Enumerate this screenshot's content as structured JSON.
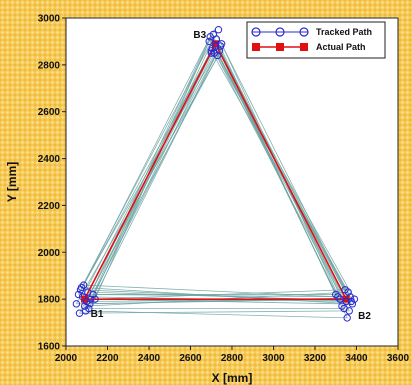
{
  "chart_data": {
    "type": "line",
    "xlabel": "X [mm]",
    "ylabel": "Y [mm]",
    "xlim": [
      2000,
      3600
    ],
    "ylim": [
      1600,
      3000
    ],
    "x_ticks": [
      2000,
      2200,
      2400,
      2600,
      2800,
      3000,
      3200,
      3400,
      3600
    ],
    "y_ticks": [
      1600,
      1800,
      2000,
      2200,
      2400,
      2600,
      2800,
      3000
    ],
    "grid": false,
    "legend_position": "top-right",
    "series": [
      {
        "name": "Tracked Path",
        "color": "#2a2ad0",
        "line_color": "#6fa3a3",
        "marker": "open-circle",
        "x": [
          2080,
          2100,
          2060,
          2120,
          2090,
          2070,
          2110,
          2130,
          2050,
          2085,
          2095,
          2140,
          2065,
          2075,
          2105,
          2115,
          2700,
          2720,
          2690,
          2740,
          2710,
          2730,
          2705,
          2725,
          2750,
          2695,
          2715,
          2735,
          2745,
          2700,
          3320,
          3350,
          3370,
          3330,
          3360,
          3390,
          3340,
          3300,
          3380,
          3355,
          3345,
          3365,
          3310,
          3375
        ],
        "y": [
          1810,
          1790,
          1820,
          1800,
          1770,
          1840,
          1760,
          1820,
          1780,
          1860,
          1750,
          1800,
          1740,
          1850,
          1830,
          1780,
          2850,
          2880,
          2900,
          2860,
          2930,
          2840,
          2870,
          2910,
          2890,
          2920,
          2850,
          2950,
          2880,
          2860,
          1800,
          1790,
          1810,
          1770,
          1830,
          1800,
          1760,
          1820,
          1780,
          1720,
          1840,
          1750,
          1810,
          1790
        ],
        "paths": [
          [
            [
              2080,
              1810
            ],
            [
              3350,
              1790
            ],
            [
              2710,
              2880
            ],
            [
              2080,
              1810
            ]
          ],
          [
            [
              2100,
              1790
            ],
            [
              3330,
              1800
            ],
            [
              2730,
              2900
            ],
            [
              2100,
              1790
            ]
          ],
          [
            [
              2060,
              1820
            ],
            [
              3370,
              1810
            ],
            [
              2700,
              2860
            ],
            [
              2060,
              1820
            ]
          ],
          [
            [
              2120,
              1800
            ],
            [
              3320,
              1780
            ],
            [
              2740,
              2870
            ],
            [
              2120,
              1800
            ]
          ],
          [
            [
              2090,
              1770
            ],
            [
              3360,
              1830
            ],
            [
              2690,
              2910
            ],
            [
              2090,
              1770
            ]
          ],
          [
            [
              2070,
              1840
            ],
            [
              3380,
              1790
            ],
            [
              2720,
              2850
            ],
            [
              2070,
              1840
            ]
          ],
          [
            [
              2110,
              1760
            ],
            [
              3340,
              1760
            ],
            [
              2750,
              2890
            ],
            [
              2110,
              1760
            ]
          ],
          [
            [
              2130,
              1820
            ],
            [
              3300,
              1820
            ],
            [
              2705,
              2930
            ],
            [
              2130,
              1820
            ]
          ],
          [
            [
              2050,
              1780
            ],
            [
              3390,
              1800
            ],
            [
              2735,
              2840
            ],
            [
              2050,
              1780
            ]
          ],
          [
            [
              2085,
              1860
            ],
            [
              3310,
              1810
            ],
            [
              2695,
              2920
            ],
            [
              2085,
              1860
            ]
          ],
          [
            [
              2095,
              1750
            ],
            [
              3355,
              1720
            ],
            [
              2725,
              2880
            ],
            [
              2095,
              1750
            ]
          ],
          [
            [
              2140,
              1800
            ],
            [
              3345,
              1840
            ],
            [
              2715,
              2950
            ],
            [
              2140,
              1800
            ]
          ],
          [
            [
              2065,
              1740
            ],
            [
              3365,
              1750
            ],
            [
              2745,
              2860
            ],
            [
              2065,
              1740
            ]
          ],
          [
            [
              2075,
              1850
            ],
            [
              3375,
              1780
            ],
            [
              2700,
              2900
            ],
            [
              2075,
              1850
            ]
          ],
          [
            [
              2105,
              1830
            ],
            [
              3335,
              1795
            ],
            [
              2722,
              2845
            ],
            [
              2105,
              1830
            ]
          ],
          [
            [
              2115,
              1780
            ],
            [
              3362,
              1805
            ],
            [
              2712,
              2915
            ],
            [
              2115,
              1780
            ]
          ]
        ]
      },
      {
        "name": "Actual Path",
        "color": "#e01010",
        "marker": "filled-square",
        "x": [
          2090,
          3350,
          2720,
          2090
        ],
        "y": [
          1800,
          1800,
          2890,
          1800
        ]
      }
    ],
    "annotations": [
      {
        "text": "B1",
        "x": 2090,
        "y": 1800
      },
      {
        "text": "B2",
        "x": 3350,
        "y": 1800
      },
      {
        "text": "B3",
        "x": 2720,
        "y": 2890
      }
    ]
  }
}
